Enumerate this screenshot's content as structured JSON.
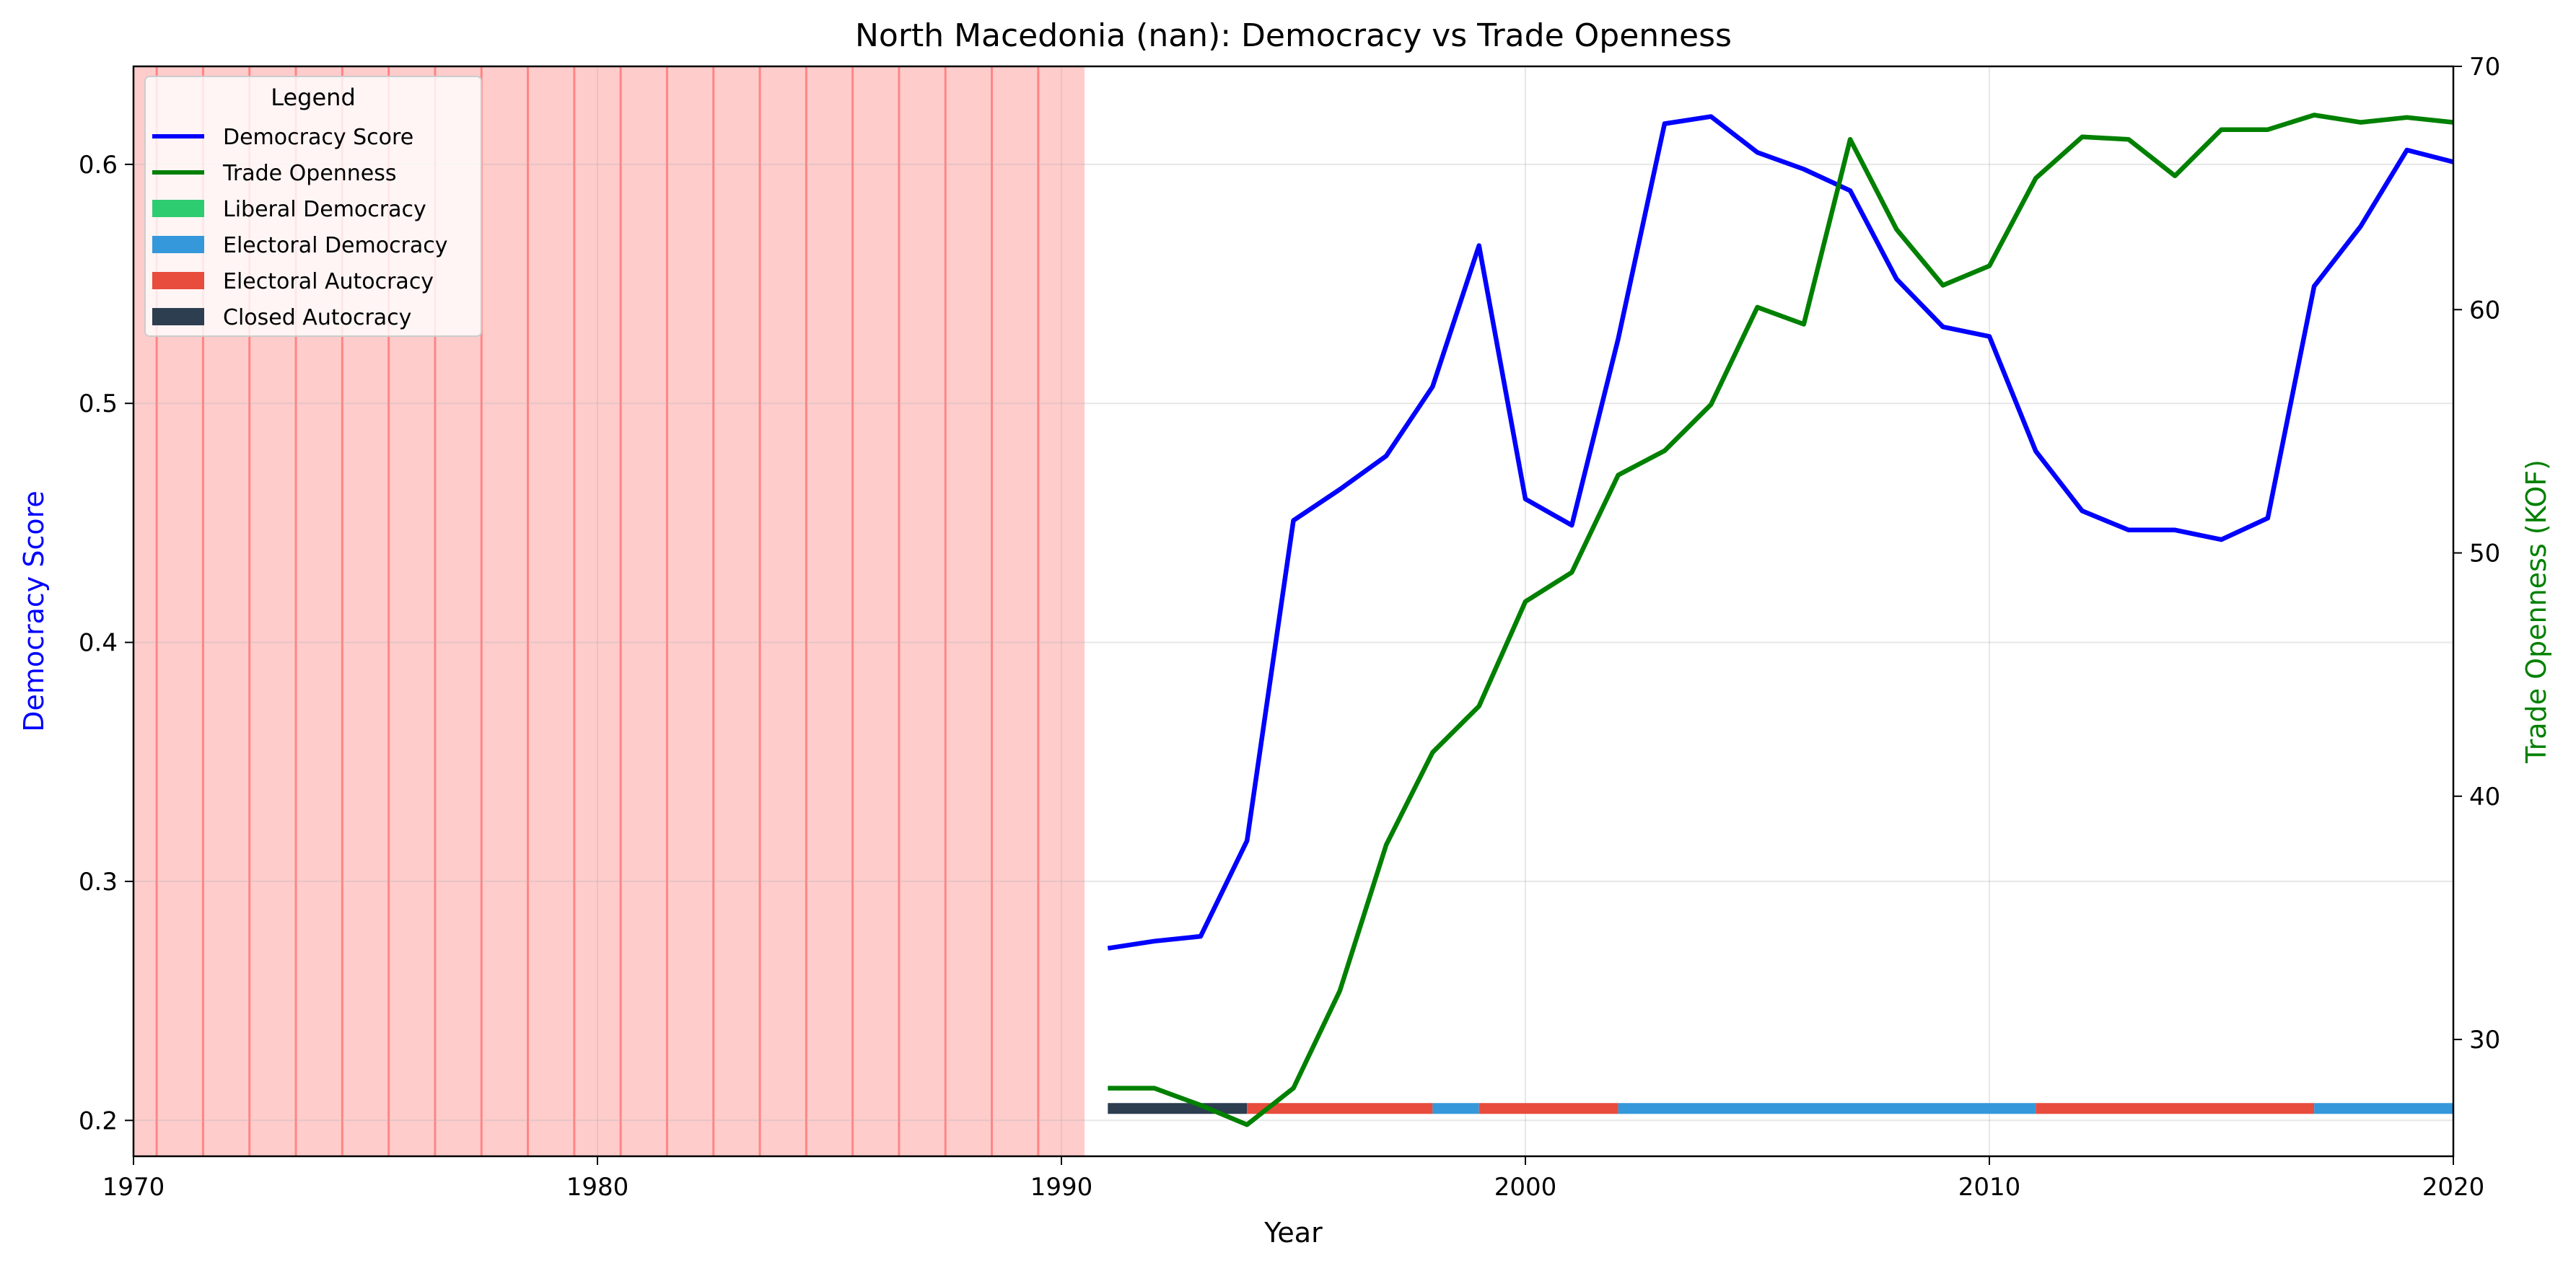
{
  "chart_data": {
    "type": "line",
    "title": "North Macedonia (nan): Democracy vs Trade Openness",
    "xlabel": "Year",
    "ylabel": "Democracy Score",
    "ylabel_right": "Trade Openness (KOF)",
    "xlim": [
      1970,
      2020
    ],
    "ylim": [
      0.185,
      0.641
    ],
    "ylim_right": [
      25.2,
      70
    ],
    "x_ticks": [
      1970,
      1980,
      1990,
      2000,
      2010,
      2020
    ],
    "y_ticks": [
      0.2,
      0.3,
      0.4,
      0.5,
      0.6
    ],
    "y_ticks_right": [
      30,
      40,
      50,
      60,
      70
    ],
    "grid": true,
    "legend_title": "Legend",
    "legend_position": "upper-left",
    "series": [
      {
        "name": "Democracy Score",
        "axis": "left",
        "color": "#0000ff",
        "x": [
          1991,
          1992,
          1993,
          1994,
          1995,
          1996,
          1997,
          1998,
          1999,
          2000,
          2001,
          2002,
          2003,
          2004,
          2005,
          2006,
          2007,
          2008,
          2009,
          2010,
          2011,
          2012,
          2013,
          2014,
          2015,
          2016,
          2017,
          2018,
          2019,
          2020
        ],
        "values": [
          0.272,
          0.275,
          0.277,
          0.317,
          0.451,
          0.464,
          0.478,
          0.507,
          0.566,
          0.46,
          0.449,
          0.527,
          0.617,
          0.62,
          0.605,
          0.598,
          0.589,
          0.552,
          0.532,
          0.528,
          0.48,
          0.455,
          0.447,
          0.447,
          0.443,
          0.452,
          0.549,
          0.574,
          0.606,
          0.601
        ]
      },
      {
        "name": "Trade Openness",
        "axis": "right",
        "color": "#008000",
        "x": [
          1991,
          1992,
          1993,
          1994,
          1995,
          1996,
          1997,
          1998,
          1999,
          2000,
          2001,
          2002,
          2003,
          2004,
          2005,
          2006,
          2007,
          2008,
          2009,
          2010,
          2011,
          2012,
          2013,
          2014,
          2015,
          2016,
          2017,
          2018,
          2019,
          2020
        ],
        "values": [
          28.0,
          28.0,
          27.3,
          26.5,
          28.0,
          32.0,
          38.0,
          41.8,
          43.7,
          48.0,
          49.2,
          53.2,
          54.2,
          56.1,
          60.1,
          59.4,
          67.0,
          63.3,
          61.0,
          61.8,
          65.4,
          67.1,
          67.0,
          65.5,
          67.4,
          67.4,
          68.0,
          67.7,
          67.9,
          67.7
        ]
      }
    ],
    "regime_legend": [
      {
        "name": "Liberal Democracy",
        "color": "#2ecc71"
      },
      {
        "name": "Electoral Democracy",
        "color": "#3498db"
      },
      {
        "name": "Electoral Autocracy",
        "color": "#e74c3c"
      },
      {
        "name": "Closed Autocracy",
        "color": "#2c3e50"
      }
    ],
    "regime_bar": {
      "y": 0.205,
      "segments": [
        {
          "start": 1991,
          "end": 1994,
          "regime": "Closed Autocracy"
        },
        {
          "start": 1994,
          "end": 1998,
          "regime": "Electoral Autocracy"
        },
        {
          "start": 1998,
          "end": 1999,
          "regime": "Electoral Democracy"
        },
        {
          "start": 1999,
          "end": 2002,
          "regime": "Electoral Autocracy"
        },
        {
          "start": 2002,
          "end": 2011,
          "regime": "Electoral Democracy"
        },
        {
          "start": 2011,
          "end": 2017,
          "regime": "Electoral Autocracy"
        },
        {
          "start": 2017,
          "end": 2020,
          "regime": "Electoral Democracy"
        }
      ]
    },
    "missing_data_shading": {
      "range": [
        1970,
        1990.5
      ],
      "color": "#ff0000",
      "marker_years": [
        1970.5,
        1971.5,
        1972.5,
        1973.5,
        1974.5,
        1975.5,
        1976.5,
        1977.5,
        1978.5,
        1979.5,
        1980.5,
        1981.5,
        1982.5,
        1983.5,
        1984.5,
        1985.5,
        1986.5,
        1987.5,
        1988.5,
        1989.5
      ]
    }
  }
}
